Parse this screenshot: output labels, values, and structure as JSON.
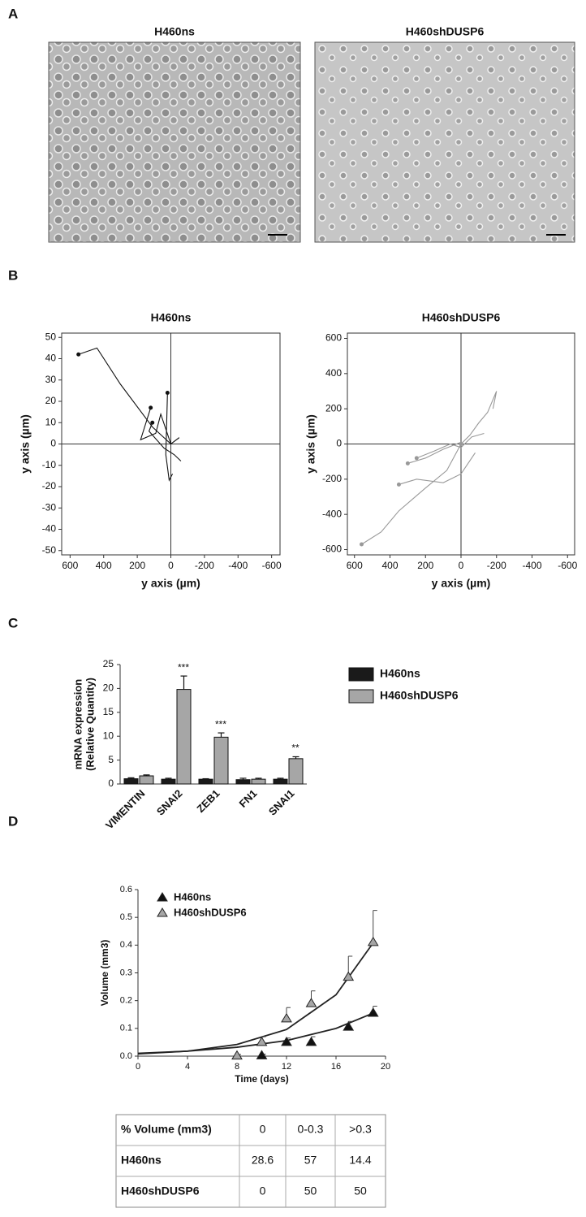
{
  "panel_labels": [
    "A",
    "B",
    "C",
    "D"
  ],
  "images": [
    {
      "title": "H460ns"
    },
    {
      "title": "H460shDUSP6"
    }
  ],
  "chart_data": [
    {
      "type": "trajectory",
      "title": "H460ns",
      "x_label": "y axis (µm)",
      "y_label": "y axis (µm)",
      "xlim": [
        650,
        -650
      ],
      "xticks": [
        600,
        400,
        200,
        0,
        -200,
        -400,
        -600
      ],
      "ylim": [
        -52,
        52
      ],
      "yticks": [
        50,
        40,
        30,
        20,
        10,
        0,
        -10,
        -20,
        -30,
        -40,
        -50
      ],
      "series": [
        {
          "color": "#111111",
          "x": [
            550,
            440,
            300,
            110,
            0
          ],
          "y": [
            42,
            45,
            28,
            8,
            0
          ]
        },
        {
          "color": "#111111",
          "x": [
            120,
            180,
            90,
            60,
            0,
            -50
          ],
          "y": [
            17,
            2,
            5,
            14,
            0,
            3
          ]
        },
        {
          "color": "#111111",
          "x": [
            110,
            130,
            40,
            -20,
            -60
          ],
          "y": [
            10,
            6,
            -2,
            -5,
            -8
          ]
        },
        {
          "color": "#111111",
          "x": [
            20,
            30,
            10,
            -10
          ],
          "y": [
            24,
            -5,
            -17,
            -14
          ]
        }
      ]
    },
    {
      "type": "trajectory",
      "title": "H460shDUSP6",
      "x_label": "y axis (µm)",
      "y_label": "y axis (µm)",
      "xlim": [
        640,
        -640
      ],
      "xticks": [
        600,
        400,
        200,
        0,
        -200,
        -400,
        -600
      ],
      "ylim": [
        -630,
        630
      ],
      "yticks": [
        600,
        400,
        200,
        0,
        -200,
        -400,
        -600
      ],
      "series": [
        {
          "color": "#999999",
          "x": [
            560,
            450,
            350,
            200,
            80,
            0
          ],
          "y": [
            -570,
            -500,
            -380,
            -250,
            -150,
            0
          ]
        },
        {
          "color": "#999999",
          "x": [
            350,
            250,
            100,
            0,
            -80
          ],
          "y": [
            -230,
            -200,
            -220,
            -170,
            -50
          ]
        },
        {
          "color": "#999999",
          "x": [
            0,
            -50,
            -100,
            -150,
            -200,
            -180
          ],
          "y": [
            0,
            50,
            120,
            180,
            300,
            200
          ]
        },
        {
          "color": "#999999",
          "x": [
            250,
            150,
            60,
            0,
            -60,
            -130
          ],
          "y": [
            -80,
            -40,
            0,
            -20,
            40,
            60
          ]
        },
        {
          "color": "#999999",
          "x": [
            300,
            200,
            100,
            0
          ],
          "y": [
            -110,
            -80,
            -30,
            10
          ]
        }
      ]
    },
    {
      "type": "bar",
      "y_label": [
        "mRNA expression",
        "(Relative Quantity)"
      ],
      "legend": "upper right",
      "categories": [
        "VIMENTIN",
        "SNAI2",
        "ZEB1",
        "FN1",
        "SNAI1"
      ],
      "ylim": [
        0,
        25
      ],
      "yticks": [
        0,
        5,
        10,
        15,
        20,
        25
      ],
      "significance": [
        null,
        "***",
        "***",
        null,
        "**"
      ],
      "series": [
        {
          "name": "H460ns",
          "color": "#1a1a1a",
          "values": [
            1.1,
            1.0,
            1.0,
            0.9,
            1.0
          ],
          "errors": [
            0.2,
            0.2,
            0.1,
            0.3,
            0.2
          ]
        },
        {
          "name": "H460shDUSP6",
          "color": "#a6a6a6",
          "values": [
            1.7,
            19.8,
            9.8,
            1.0,
            5.3
          ],
          "errors": [
            0.2,
            2.8,
            0.9,
            0.2,
            0.4
          ]
        }
      ]
    },
    {
      "type": "line",
      "x_label": "Time (days)",
      "y_label": "Volume (mm3)",
      "legend": "upper left",
      "xlim": [
        0,
        20
      ],
      "xticks": [
        0,
        4,
        8,
        12,
        16,
        20
      ],
      "ylim": [
        0,
        0.6
      ],
      "yticks": [
        {
          "value": 0,
          "label": "0.0"
        },
        0.1,
        0.2,
        0.3,
        0.4,
        0.5,
        0.6
      ],
      "series": [
        {
          "name": "H460ns",
          "color": "#111111",
          "x": [
            10,
            12,
            14,
            17,
            19
          ],
          "values": [
            0.002,
            0.05,
            0.05,
            0.105,
            0.155
          ],
          "errors": [
            0.005,
            0.015,
            0.02,
            0.02,
            0.025
          ],
          "fit_x": [
            0,
            4,
            8,
            12,
            16,
            19
          ],
          "fit_values": [
            0.01,
            0.018,
            0.032,
            0.056,
            0.1,
            0.155
          ]
        },
        {
          "name": "H460shDUSP6",
          "color": "#a6a6a6",
          "x": [
            8,
            10,
            12,
            14,
            17,
            19
          ],
          "values": [
            0.001,
            0.05,
            0.135,
            0.19,
            0.285,
            0.41
          ],
          "errors": [
            0.005,
            0.02,
            0.04,
            0.045,
            0.075,
            0.115
          ],
          "fit_x": [
            0,
            4,
            8,
            12,
            16,
            19
          ],
          "fit_values": [
            0.008,
            0.018,
            0.042,
            0.096,
            0.221,
            0.408
          ]
        }
      ]
    }
  ],
  "table": {
    "header": [
      "% Volume (mm3)",
      "0",
      "0-0.3",
      ">0.3"
    ],
    "rows": [
      [
        "H460ns",
        "28.6",
        "57",
        "14.4"
      ],
      [
        "H460shDUSP6",
        "0",
        "50",
        "50"
      ]
    ]
  }
}
